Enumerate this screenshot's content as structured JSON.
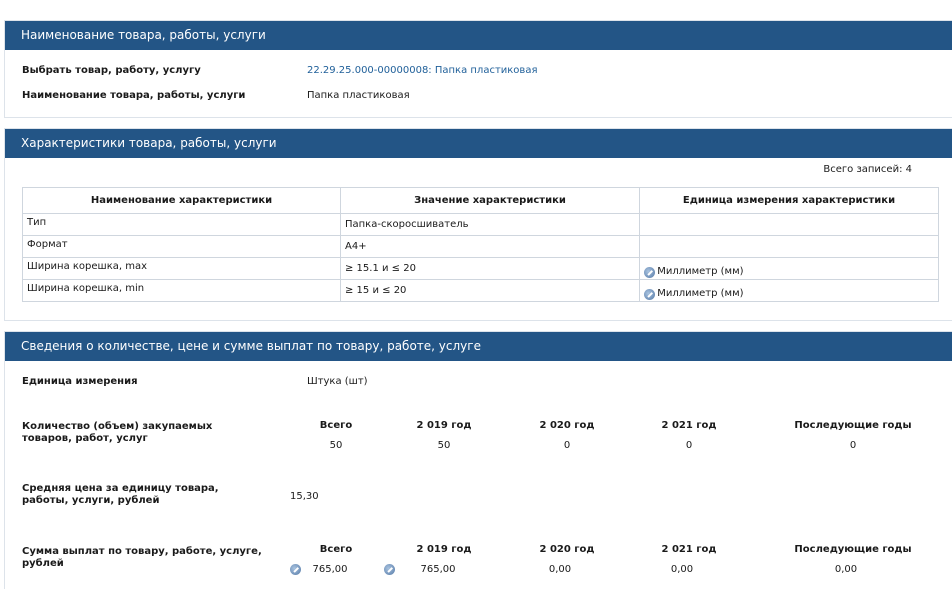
{
  "section1": {
    "title": "Наименование товара, работы, услуги",
    "select_label": "Выбрать товар, работу, услугу",
    "select_value": "22.29.25.000-00000008: Папка пластиковая",
    "name_label": "Наименование товара, работы, услуги",
    "name_value": "Папка пластиковая"
  },
  "section2": {
    "title": "Характеристики товара, работы, услуги",
    "records_count": "Всего записей: 4",
    "columns": [
      "Наименование характеристики",
      "Значение характеристики",
      "Единица измерения характеристики"
    ],
    "rows": [
      {
        "name": "Тип",
        "value": "Папка-скоросшиватель",
        "unit": ""
      },
      {
        "name": "Формат",
        "value": "A4+",
        "unit": ""
      },
      {
        "name": "Ширина корешка, max",
        "value": "≥ 15.1 и ≤ 20",
        "unit": "Миллиметр (мм)"
      },
      {
        "name": "Ширина корешка, min",
        "value": "≥ 15 и ≤ 20",
        "unit": "Миллиметр (мм)"
      }
    ]
  },
  "section3": {
    "title": "Сведения о количестве, цене и сумме выплат по товару, работе, услуге",
    "unit_label": "Единица измерения",
    "unit_value": "Штука (шт)",
    "qty_label": "Количество (объем) закупаемых товаров, работ, услуг",
    "qty_headers": [
      "Всего",
      "2 019 год",
      "2 020 год",
      "2 021 год",
      "Последующие годы"
    ],
    "qty_values": [
      "50",
      "50",
      "0",
      "0",
      "0"
    ],
    "price_label": "Средняя цена за единицу товара, работы, услуги, рублей",
    "price_value": "15,30",
    "sum_label": "Сумма выплат по товару, работе, услуге, рублей",
    "sum_headers": [
      "Всего",
      "2 019 год",
      "2 020 год",
      "2 021 год",
      "Последующие годы"
    ],
    "sum_values": [
      "765,00",
      "765,00",
      "0,00",
      "0,00",
      "0,00"
    ]
  },
  "colors": {
    "header_bg": "#235586",
    "link": "#1f5f99"
  },
  "icons": [
    "edit-pencil-icon"
  ]
}
